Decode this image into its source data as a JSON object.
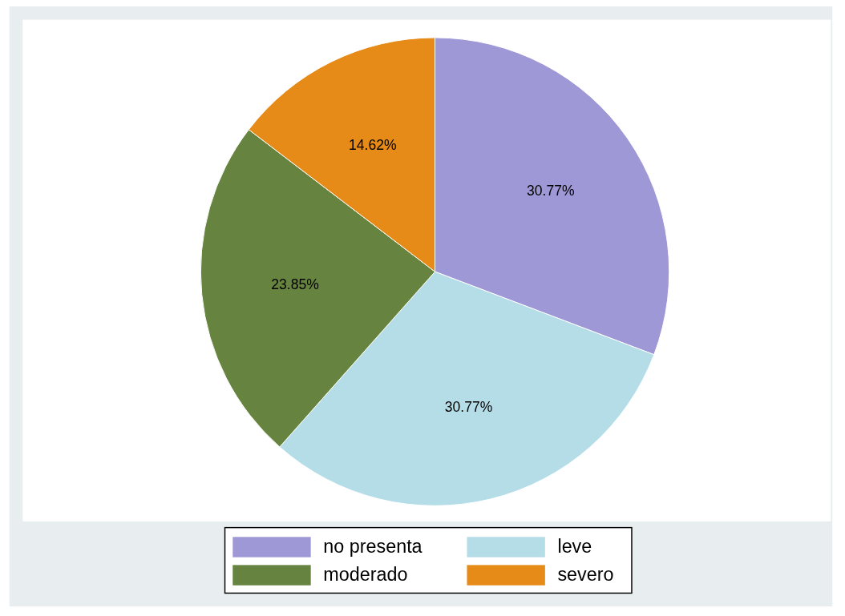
{
  "chart_data": {
    "type": "pie",
    "categories": [
      "no presenta",
      "leve",
      "moderado",
      "severo"
    ],
    "values": [
      30.77,
      30.77,
      23.85,
      14.62
    ],
    "value_labels": [
      "30.77%",
      "30.77%",
      "23.85%",
      "14.62%"
    ],
    "colors": [
      "#9e98d6",
      "#b5dde8",
      "#66833f",
      "#e68a18"
    ],
    "legend": "bottom"
  }
}
